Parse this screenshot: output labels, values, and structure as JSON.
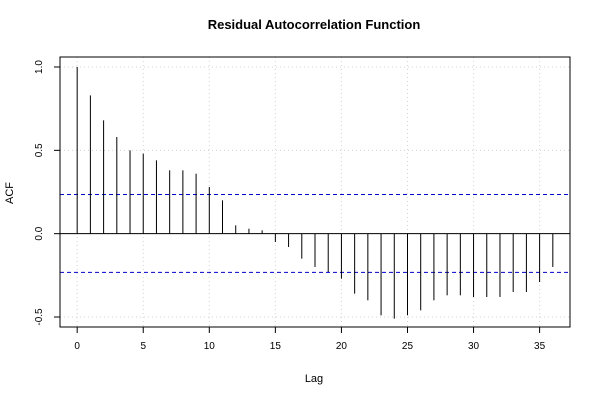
{
  "chart_data": {
    "type": "bar",
    "title": "Residual Autocorrelation Function",
    "xlabel": "Lag",
    "ylabel": "ACF",
    "xlim": [
      -1.3,
      37.3
    ],
    "ylim": [
      -0.56,
      1.06
    ],
    "x_ticks": [
      0,
      5,
      10,
      15,
      20,
      25,
      30,
      35
    ],
    "y_ticks": [
      -0.5,
      0.0,
      0.5,
      1.0
    ],
    "x_tick_labels": [
      "0",
      "5",
      "10",
      "15",
      "20",
      "25",
      "30",
      "35"
    ],
    "y_tick_labels": [
      "-0.5",
      "0.0",
      "0.5",
      "1.0"
    ],
    "grid": true,
    "confidence_bounds": [
      0.235,
      -0.232
    ],
    "lags": [
      0,
      1,
      2,
      3,
      4,
      5,
      6,
      7,
      8,
      9,
      10,
      11,
      12,
      13,
      14,
      15,
      16,
      17,
      18,
      19,
      20,
      21,
      22,
      23,
      24,
      25,
      26,
      27,
      28,
      29,
      30,
      31,
      32,
      33,
      34,
      35,
      36
    ],
    "values": [
      1.0,
      0.83,
      0.68,
      0.58,
      0.5,
      0.48,
      0.44,
      0.38,
      0.38,
      0.36,
      0.28,
      0.2,
      0.05,
      0.03,
      0.02,
      -0.05,
      -0.08,
      -0.15,
      -0.2,
      -0.23,
      -0.27,
      -0.36,
      -0.4,
      -0.49,
      -0.51,
      -0.49,
      -0.46,
      -0.4,
      -0.37,
      -0.37,
      -0.38,
      -0.38,
      -0.38,
      -0.35,
      -0.35,
      -0.29,
      -0.2
    ],
    "colors": {
      "spike": "#000000",
      "zero_line": "#000000",
      "confidence": "#0000cc",
      "grid": "#d3d3d3",
      "frame": "#000000"
    }
  }
}
